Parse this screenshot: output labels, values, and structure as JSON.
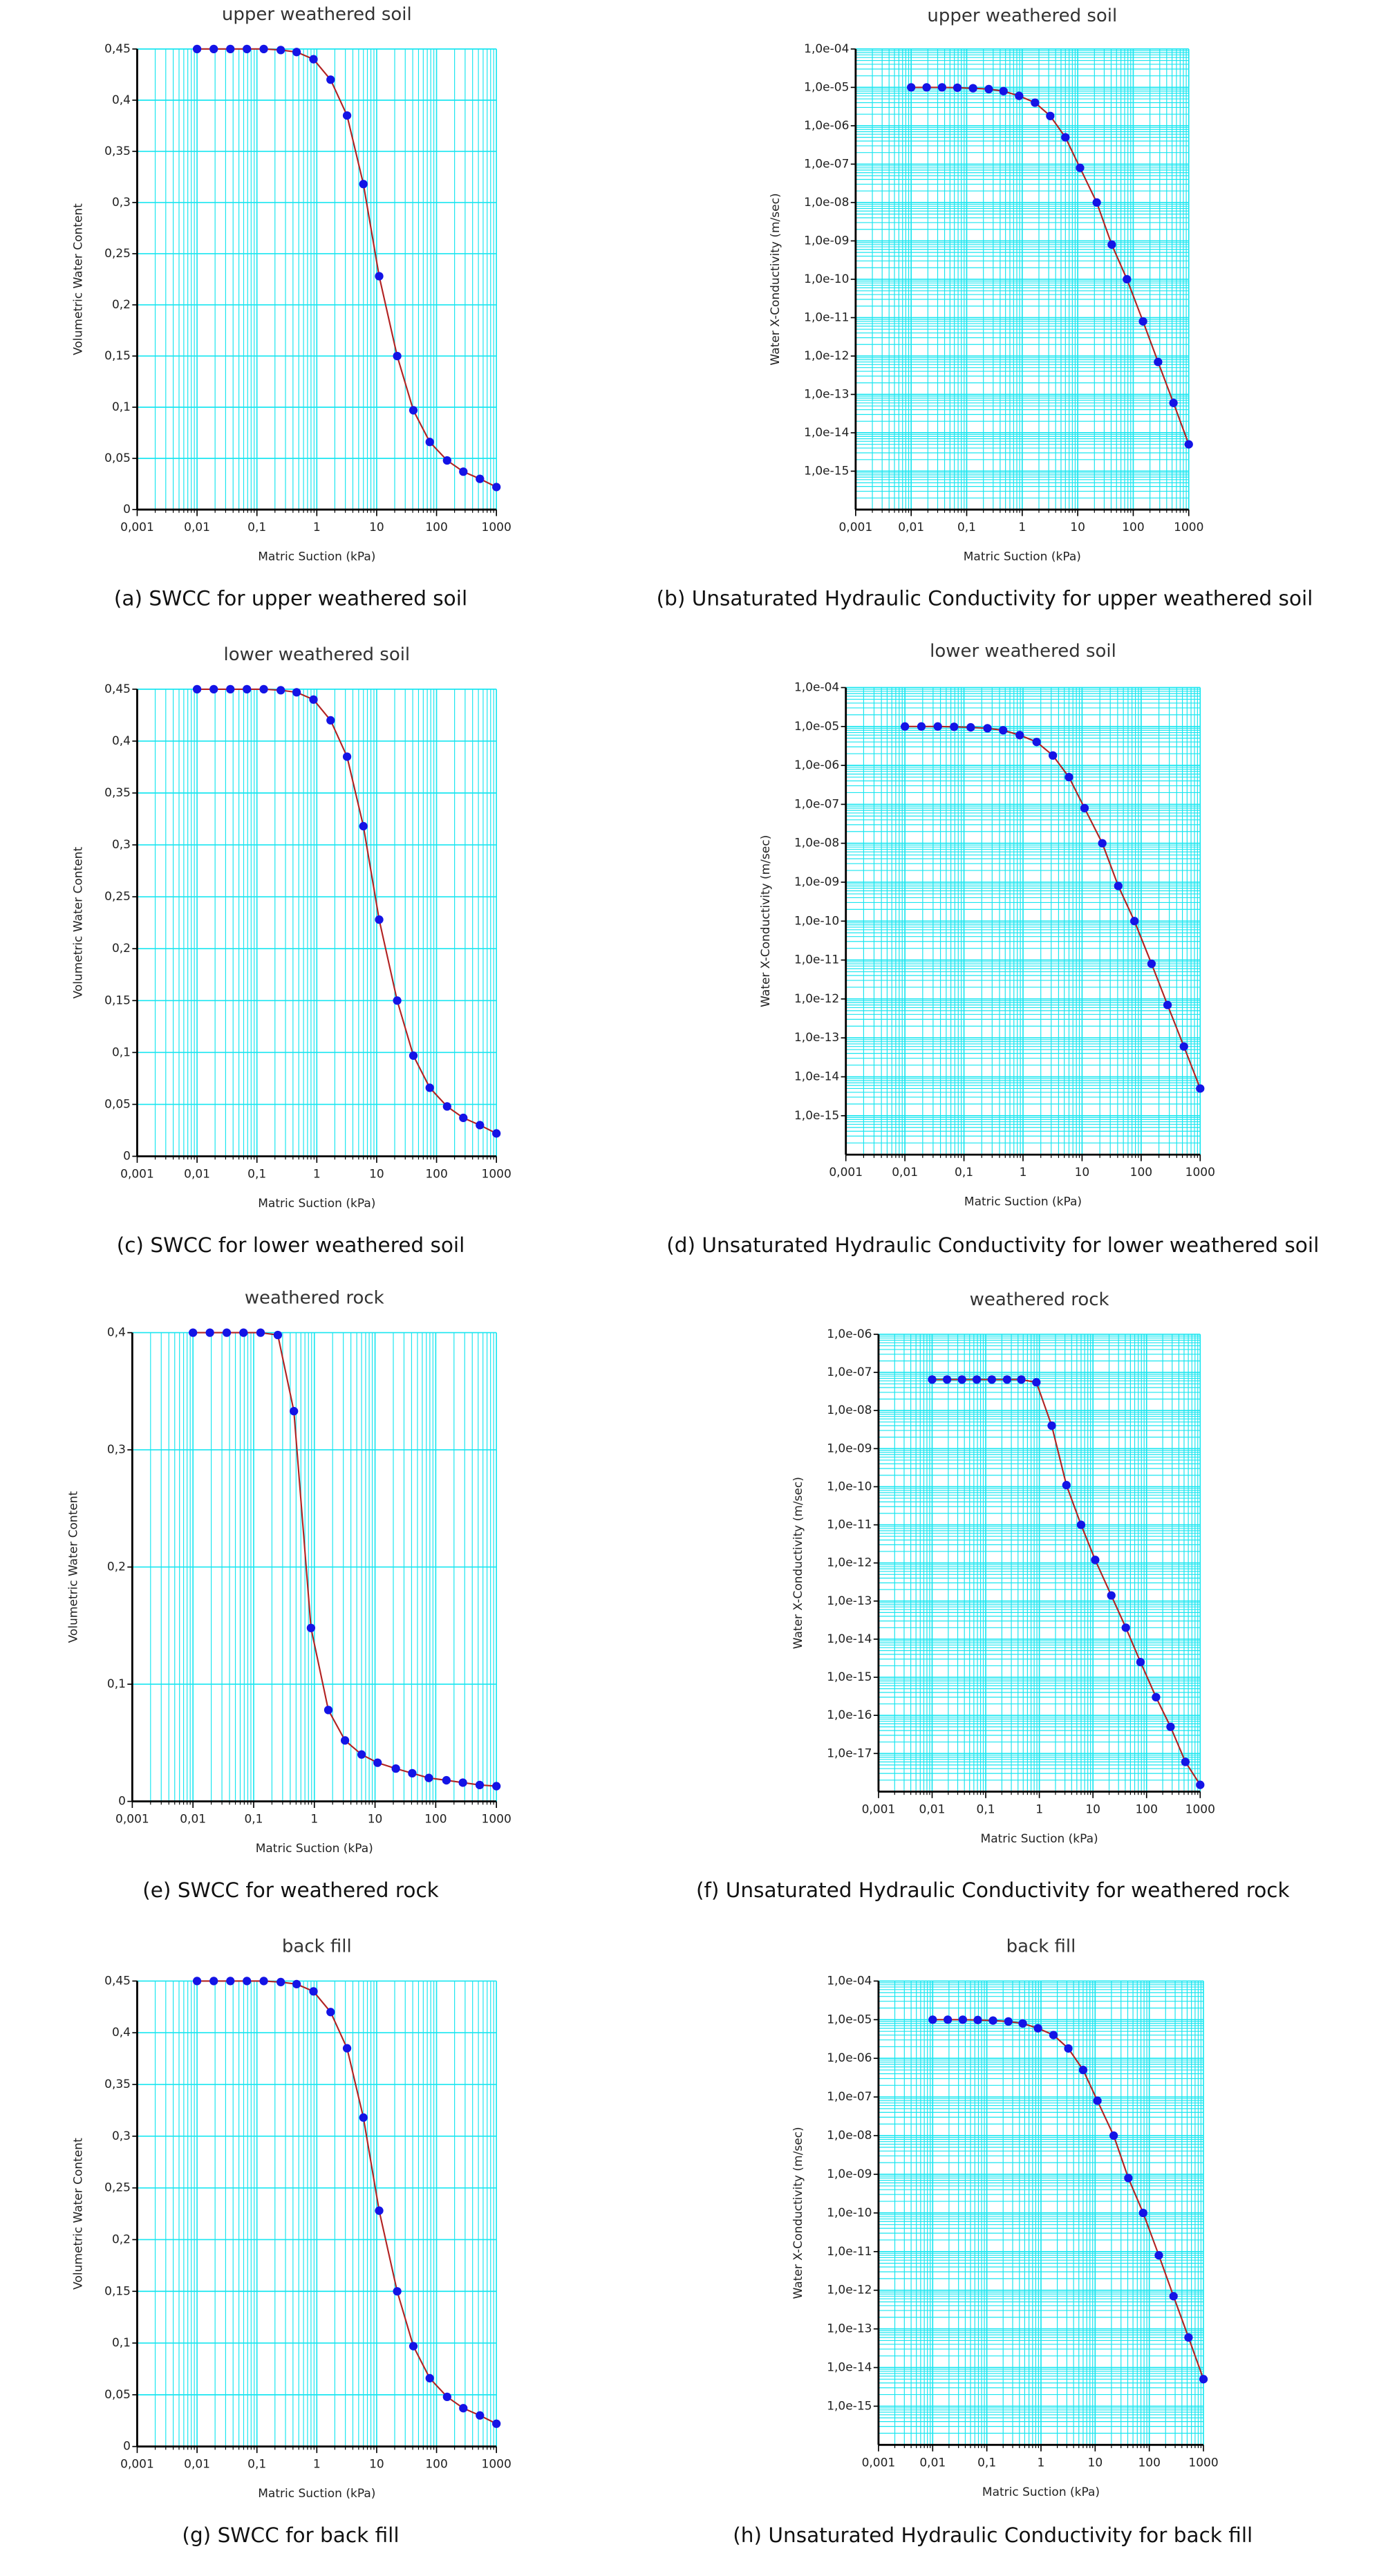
{
  "chart_data": [
    {
      "type": "line",
      "title": "upper weathered soil",
      "caption": "(a) SWCC for upper weathered soil",
      "xlabel": "Matric Suction (kPa)",
      "ylabel": "Volumetric Water Content",
      "log_x": true,
      "log_y": false,
      "grid": true,
      "x": [
        0.01,
        0.019,
        0.036,
        0.068,
        0.13,
        0.25,
        0.46,
        0.88,
        1.7,
        3.2,
        6,
        11,
        22,
        41,
        77,
        150,
        280,
        530,
        1000
      ],
      "series": [
        {
          "color": "#1414e6",
          "line_color": "#b22222",
          "values": [
            0.45,
            0.45,
            0.45,
            0.45,
            0.45,
            0.449,
            0.447,
            0.44,
            0.42,
            0.385,
            0.318,
            0.228,
            0.15,
            0.097,
            0.066,
            0.048,
            0.037,
            0.03,
            0.022
          ]
        }
      ],
      "xlim": [
        0.001,
        1000
      ],
      "xticks": [
        {
          "value": 0.001,
          "label": "0,001"
        },
        {
          "value": 0.01,
          "label": "0,01"
        },
        {
          "value": 0.1,
          "label": "0,1"
        },
        1,
        10,
        100,
        1000
      ],
      "ylim": [
        0,
        0.45
      ],
      "yticks": [
        0,
        {
          "value": 0.05,
          "label": "0,05"
        },
        {
          "value": 0.1,
          "label": "0,1"
        },
        {
          "value": 0.15,
          "label": "0,15"
        },
        {
          "value": 0.2,
          "label": "0,2"
        },
        {
          "value": 0.25,
          "label": "0,25"
        },
        {
          "value": 0.3,
          "label": "0,3"
        },
        {
          "value": 0.35,
          "label": "0,35"
        },
        {
          "value": 0.4,
          "label": "0,4"
        },
        {
          "value": 0.45,
          "label": "0,45"
        }
      ]
    },
    {
      "type": "line",
      "title": "upper weathered soil",
      "caption": "(b) Unsaturated Hydraulic Conductivity for upper weathered soil",
      "xlabel": "Matric Suction (kPa)",
      "ylabel": "Water X-Conductivity (m/sec)",
      "log_x": true,
      "log_y": true,
      "grid": true,
      "x": [
        0.01,
        0.019,
        0.036,
        0.068,
        0.13,
        0.25,
        0.46,
        0.88,
        1.7,
        3.2,
        6,
        11,
        22,
        41,
        77,
        150,
        280,
        530,
        1000
      ],
      "series": [
        {
          "color": "#1414e6",
          "line_color": "#b22222",
          "values": [
            1e-05,
            1e-05,
            1e-05,
            9.8e-06,
            9.5e-06,
            9e-06,
            8e-06,
            6e-06,
            4e-06,
            1.8e-06,
            5e-07,
            8e-08,
            1e-08,
            8e-10,
            1e-10,
            8e-12,
            7e-13,
            6e-14,
            5e-15
          ]
        }
      ],
      "xlim": [
        0.001,
        1000
      ],
      "xticks": [
        {
          "value": 0.001,
          "label": "0,001"
        },
        {
          "value": 0.01,
          "label": "0,01"
        },
        {
          "value": 0.1,
          "label": "0,1"
        },
        1,
        10,
        100,
        1000
      ],
      "ylim": [
        1e-16,
        0.0001
      ],
      "yticks": [
        {
          "value": 0.0001,
          "label": "1,0e-04"
        },
        {
          "value": 1e-05,
          "label": "1,0e-05"
        },
        {
          "value": 1e-06,
          "label": "1,0e-06"
        },
        {
          "value": 1e-07,
          "label": "1,0e-07"
        },
        {
          "value": 1e-08,
          "label": "1,0e-08"
        },
        {
          "value": 1e-09,
          "label": "1,0e-09"
        },
        {
          "value": 1e-10,
          "label": "1,0e-10"
        },
        {
          "value": 1e-11,
          "label": "1,0e-11"
        },
        {
          "value": 1e-12,
          "label": "1,0e-12"
        },
        {
          "value": 1e-13,
          "label": "1,0e-13"
        },
        {
          "value": 1e-14,
          "label": "1,0e-14"
        },
        {
          "value": 1e-15,
          "label": "1,0e-15"
        }
      ]
    },
    {
      "type": "line",
      "title": "lower weathered soil",
      "caption": "(c) SWCC for lower weathered soil",
      "xlabel": "Matric Suction (kPa)",
      "ylabel": "Volumetric Water Content",
      "log_x": true,
      "log_y": false,
      "grid": true,
      "x": [
        0.01,
        0.019,
        0.036,
        0.068,
        0.13,
        0.25,
        0.46,
        0.88,
        1.7,
        3.2,
        6,
        11,
        22,
        41,
        77,
        150,
        280,
        530,
        1000
      ],
      "series": [
        {
          "color": "#1414e6",
          "line_color": "#b22222",
          "values": [
            0.45,
            0.45,
            0.45,
            0.45,
            0.45,
            0.449,
            0.447,
            0.44,
            0.42,
            0.385,
            0.318,
            0.228,
            0.15,
            0.097,
            0.066,
            0.048,
            0.037,
            0.03,
            0.022
          ]
        }
      ],
      "xlim": [
        0.001,
        1000
      ],
      "xticks": [
        {
          "value": 0.001,
          "label": "0,001"
        },
        {
          "value": 0.01,
          "label": "0,01"
        },
        {
          "value": 0.1,
          "label": "0,1"
        },
        1,
        10,
        100,
        1000
      ],
      "ylim": [
        0,
        0.45
      ],
      "yticks": [
        0,
        {
          "value": 0.05,
          "label": "0,05"
        },
        {
          "value": 0.1,
          "label": "0,1"
        },
        {
          "value": 0.15,
          "label": "0,15"
        },
        {
          "value": 0.2,
          "label": "0,2"
        },
        {
          "value": 0.25,
          "label": "0,25"
        },
        {
          "value": 0.3,
          "label": "0,3"
        },
        {
          "value": 0.35,
          "label": "0,35"
        },
        {
          "value": 0.4,
          "label": "0,4"
        },
        {
          "value": 0.45,
          "label": "0,45"
        }
      ]
    },
    {
      "type": "line",
      "title": "lower weathered soil",
      "caption": "(d) Unsaturated Hydraulic Conductivity for lower weathered soil",
      "xlabel": "Matric Suction (kPa)",
      "ylabel": "Water X-Conductivity (m/sec)",
      "log_x": true,
      "log_y": true,
      "grid": true,
      "x": [
        0.01,
        0.019,
        0.036,
        0.068,
        0.13,
        0.25,
        0.46,
        0.88,
        1.7,
        3.2,
        6,
        11,
        22,
        41,
        77,
        150,
        280,
        530,
        1000
      ],
      "series": [
        {
          "color": "#1414e6",
          "line_color": "#b22222",
          "values": [
            1e-05,
            1e-05,
            1e-05,
            9.8e-06,
            9.5e-06,
            9e-06,
            8e-06,
            6e-06,
            4e-06,
            1.8e-06,
            5e-07,
            8e-08,
            1e-08,
            8e-10,
            1e-10,
            8e-12,
            7e-13,
            6e-14,
            5e-15
          ]
        }
      ],
      "xlim": [
        0.001,
        1000
      ],
      "xticks": [
        {
          "value": 0.001,
          "label": "0,001"
        },
        {
          "value": 0.01,
          "label": "0,01"
        },
        {
          "value": 0.1,
          "label": "0,1"
        },
        1,
        10,
        100,
        1000
      ],
      "ylim": [
        1e-16,
        0.0001
      ],
      "yticks": [
        {
          "value": 0.0001,
          "label": "1,0e-04"
        },
        {
          "value": 1e-05,
          "label": "1,0e-05"
        },
        {
          "value": 1e-06,
          "label": "1,0e-06"
        },
        {
          "value": 1e-07,
          "label": "1,0e-07"
        },
        {
          "value": 1e-08,
          "label": "1,0e-08"
        },
        {
          "value": 1e-09,
          "label": "1,0e-09"
        },
        {
          "value": 1e-10,
          "label": "1,0e-10"
        },
        {
          "value": 1e-11,
          "label": "1,0e-11"
        },
        {
          "value": 1e-12,
          "label": "1,0e-12"
        },
        {
          "value": 1e-13,
          "label": "1,0e-13"
        },
        {
          "value": 1e-14,
          "label": "1,0e-14"
        },
        {
          "value": 1e-15,
          "label": "1,0e-15"
        }
      ]
    },
    {
      "type": "line",
      "title": "weathered rock",
      "caption": "(e) SWCC for weathered rock",
      "xlabel": "Matric Suction (kPa)",
      "ylabel": "Volumetric Water Content",
      "log_x": true,
      "log_y": false,
      "grid": true,
      "x": [
        0.01,
        0.019,
        0.036,
        0.068,
        0.13,
        0.25,
        0.46,
        0.88,
        1.7,
        3.2,
        6,
        11,
        22,
        41,
        77,
        150,
        280,
        530,
        1000
      ],
      "series": [
        {
          "color": "#1414e6",
          "line_color": "#b22222",
          "values": [
            0.4,
            0.4,
            0.4,
            0.4,
            0.4,
            0.398,
            0.333,
            0.148,
            0.078,
            0.052,
            0.04,
            0.033,
            0.028,
            0.024,
            0.02,
            0.018,
            0.016,
            0.014,
            0.013
          ]
        }
      ],
      "xlim": [
        0.001,
        1000
      ],
      "xticks": [
        {
          "value": 0.001,
          "label": "0,001"
        },
        {
          "value": 0.01,
          "label": "0,01"
        },
        {
          "value": 0.1,
          "label": "0,1"
        },
        1,
        10,
        100,
        1000
      ],
      "ylim": [
        0,
        0.4
      ],
      "yticks": [
        0,
        {
          "value": 0.1,
          "label": "0,1"
        },
        {
          "value": 0.2,
          "label": "0,2"
        },
        {
          "value": 0.3,
          "label": "0,3"
        },
        {
          "value": 0.4,
          "label": "0,4"
        }
      ]
    },
    {
      "type": "line",
      "title": "weathered rock",
      "caption": "(f) Unsaturated Hydraulic Conductivity for weathered rock",
      "xlabel": "Matric Suction (kPa)",
      "ylabel": "Water X-Conductivity (m/sec)",
      "log_x": true,
      "log_y": true,
      "grid": true,
      "x": [
        0.01,
        0.019,
        0.036,
        0.068,
        0.13,
        0.25,
        0.46,
        0.88,
        1.7,
        3.2,
        6,
        11,
        22,
        41,
        77,
        150,
        280,
        530,
        1000
      ],
      "series": [
        {
          "color": "#1414e6",
          "line_color": "#b22222",
          "values": [
            6.5e-08,
            6.5e-08,
            6.5e-08,
            6.5e-08,
            6.5e-08,
            6.5e-08,
            6.5e-08,
            5.5e-08,
            4e-09,
            1.1e-10,
            1e-11,
            1.2e-12,
            1.4e-13,
            2e-14,
            2.5e-15,
            3e-16,
            5e-17,
            6e-18,
            1.5e-18
          ]
        }
      ],
      "xlim": [
        0.001,
        1000
      ],
      "xticks": [
        {
          "value": 0.001,
          "label": "0,001"
        },
        {
          "value": 0.01,
          "label": "0,01"
        },
        {
          "value": 0.1,
          "label": "0,1"
        },
        1,
        10,
        100,
        1000
      ],
      "ylim": [
        1e-18,
        1e-06
      ],
      "yticks": [
        {
          "value": 1e-06,
          "label": "1,0e-06"
        },
        {
          "value": 1e-07,
          "label": "1,0e-07"
        },
        {
          "value": 1e-08,
          "label": "1,0e-08"
        },
        {
          "value": 1e-09,
          "label": "1,0e-09"
        },
        {
          "value": 1e-10,
          "label": "1,0e-10"
        },
        {
          "value": 1e-11,
          "label": "1,0e-11"
        },
        {
          "value": 1e-12,
          "label": "1,0e-12"
        },
        {
          "value": 1e-13,
          "label": "1,0e-13"
        },
        {
          "value": 1e-14,
          "label": "1,0e-14"
        },
        {
          "value": 1e-15,
          "label": "1,0e-15"
        },
        {
          "value": 1e-16,
          "label": "1,0e-16"
        },
        {
          "value": 1e-17,
          "label": "1,0e-17"
        }
      ]
    },
    {
      "type": "line",
      "title": "back fill",
      "caption": "(g) SWCC for back fill",
      "xlabel": "Matric Suction (kPa)",
      "ylabel": "Volumetric Water Content",
      "log_x": true,
      "log_y": false,
      "grid": true,
      "x": [
        0.01,
        0.019,
        0.036,
        0.068,
        0.13,
        0.25,
        0.46,
        0.88,
        1.7,
        3.2,
        6,
        11,
        22,
        41,
        77,
        150,
        280,
        530,
        1000
      ],
      "series": [
        {
          "color": "#1414e6",
          "line_color": "#b22222",
          "values": [
            0.45,
            0.45,
            0.45,
            0.45,
            0.45,
            0.449,
            0.447,
            0.44,
            0.42,
            0.385,
            0.318,
            0.228,
            0.15,
            0.097,
            0.066,
            0.048,
            0.037,
            0.03,
            0.022
          ]
        }
      ],
      "xlim": [
        0.001,
        1000
      ],
      "xticks": [
        {
          "value": 0.001,
          "label": "0,001"
        },
        {
          "value": 0.01,
          "label": "0,01"
        },
        {
          "value": 0.1,
          "label": "0,1"
        },
        1,
        10,
        100,
        1000
      ],
      "ylim": [
        0,
        0.45
      ],
      "yticks": [
        0,
        {
          "value": 0.05,
          "label": "0,05"
        },
        {
          "value": 0.1,
          "label": "0,1"
        },
        {
          "value": 0.15,
          "label": "0,15"
        },
        {
          "value": 0.2,
          "label": "0,2"
        },
        {
          "value": 0.25,
          "label": "0,25"
        },
        {
          "value": 0.3,
          "label": "0,3"
        },
        {
          "value": 0.35,
          "label": "0,35"
        },
        {
          "value": 0.4,
          "label": "0,4"
        },
        {
          "value": 0.45,
          "label": "0,45"
        }
      ]
    },
    {
      "type": "line",
      "title": "back fill",
      "caption": "(h) Unsaturated Hydraulic Conductivity for back fill",
      "xlabel": "Matric Suction (kPa)",
      "ylabel": "Water X-Conductivity (m/sec)",
      "log_x": true,
      "log_y": true,
      "grid": true,
      "x": [
        0.01,
        0.019,
        0.036,
        0.068,
        0.13,
        0.25,
        0.46,
        0.88,
        1.7,
        3.2,
        6,
        11,
        22,
        41,
        77,
        150,
        280,
        530,
        1000
      ],
      "series": [
        {
          "color": "#1414e6",
          "line_color": "#b22222",
          "values": [
            1e-05,
            1e-05,
            1e-05,
            9.8e-06,
            9.5e-06,
            9e-06,
            8e-06,
            6e-06,
            4e-06,
            1.8e-06,
            5e-07,
            8e-08,
            1e-08,
            8e-10,
            1e-10,
            8e-12,
            7e-13,
            6e-14,
            5e-15
          ]
        }
      ],
      "xlim": [
        0.001,
        1000
      ],
      "xticks": [
        {
          "value": 0.001,
          "label": "0,001"
        },
        {
          "value": 0.01,
          "label": "0,01"
        },
        {
          "value": 0.1,
          "label": "0,1"
        },
        1,
        10,
        100,
        1000
      ],
      "ylim": [
        1e-16,
        0.0001
      ],
      "yticks": [
        {
          "value": 0.0001,
          "label": "1,0e-04"
        },
        {
          "value": 1e-05,
          "label": "1,0e-05"
        },
        {
          "value": 1e-06,
          "label": "1,0e-06"
        },
        {
          "value": 1e-07,
          "label": "1,0e-07"
        },
        {
          "value": 1e-08,
          "label": "1,0e-08"
        },
        {
          "value": 1e-09,
          "label": "1,0e-09"
        },
        {
          "value": 1e-10,
          "label": "1,0e-10"
        },
        {
          "value": 1e-11,
          "label": "1,0e-11"
        },
        {
          "value": 1e-12,
          "label": "1,0e-12"
        },
        {
          "value": 1e-13,
          "label": "1,0e-13"
        },
        {
          "value": 1e-14,
          "label": "1,0e-14"
        },
        {
          "value": 1e-15,
          "label": "1,0e-15"
        }
      ]
    }
  ]
}
